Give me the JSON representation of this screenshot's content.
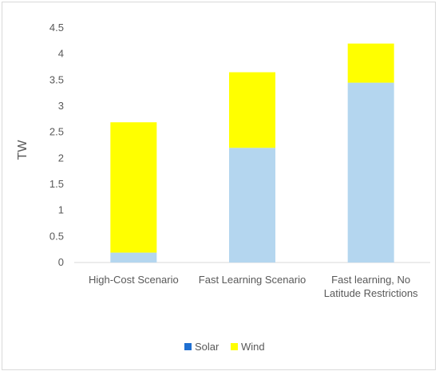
{
  "chart_data": {
    "type": "bar",
    "stacked": true,
    "categories": [
      [
        "High-Cost Scenario"
      ],
      [
        "Fast Learning Scenario"
      ],
      [
        "Fast learning, No",
        "Latitude Restrictions"
      ]
    ],
    "series": [
      {
        "name": "Solar",
        "values": [
          0.19,
          2.2,
          3.45
        ],
        "color": "#b4d6ef",
        "legend_color": "#1f6fd1"
      },
      {
        "name": "Wind",
        "values": [
          2.5,
          1.45,
          0.75
        ],
        "color": "#ffff00",
        "legend_color": "#ffff00"
      }
    ],
    "title": "",
    "xlabel": "",
    "ylabel": "TW",
    "ylim": [
      0,
      4.5
    ],
    "yticks": [
      "0",
      "0.5",
      "1",
      "1.5",
      "2",
      "2.5",
      "3",
      "3.5",
      "4",
      "4.5"
    ],
    "grid": false,
    "legend_position": "bottom"
  }
}
